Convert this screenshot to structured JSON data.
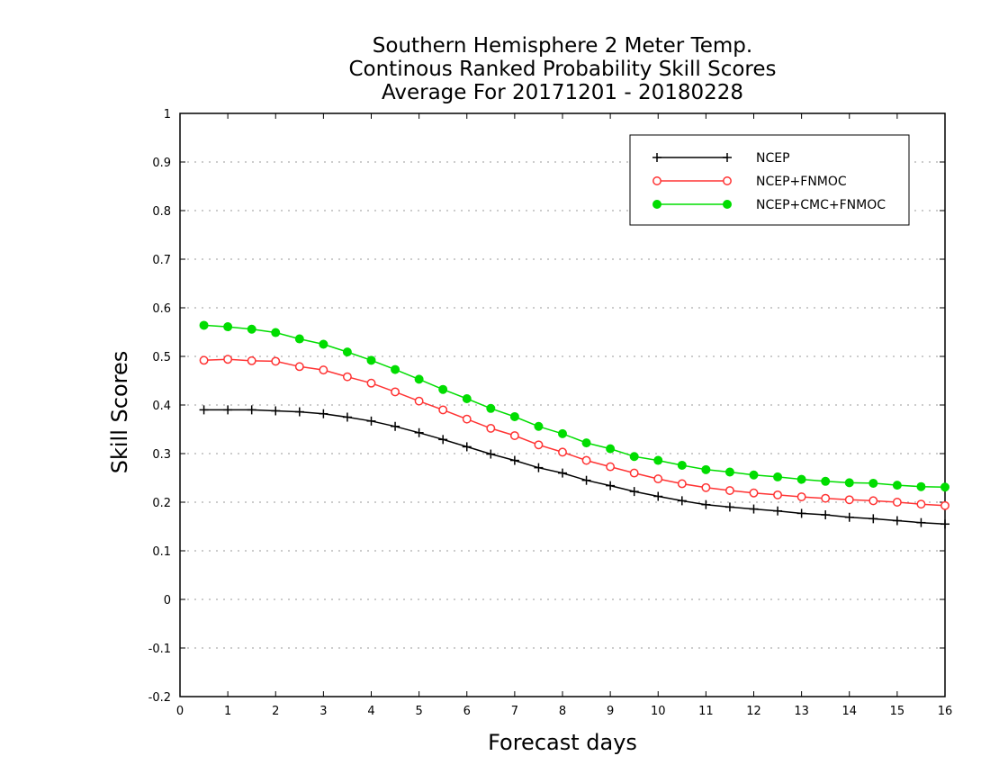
{
  "chart_data": {
    "type": "line",
    "title": "Southern Hemisphere 2 Meter Temp.",
    "subtitle": "Continous Ranked Probability Skill Scores",
    "period": "Average For 20171201 - 20180228",
    "xlabel": "Forecast days",
    "ylabel": "Skill Scores",
    "xlim": [
      0,
      16
    ],
    "ylim": [
      -0.2,
      1
    ],
    "xticks": [
      0,
      1,
      2,
      3,
      4,
      5,
      6,
      7,
      8,
      9,
      10,
      11,
      12,
      13,
      14,
      15,
      16
    ],
    "yticks": [
      "-0.2",
      "-0.1",
      "0",
      "0.1",
      "0.2",
      "0.3",
      "0.4",
      "0.5",
      "0.6",
      "0.7",
      "0.8",
      "0.9",
      "1"
    ],
    "grid": true,
    "legend_position": "top-right",
    "x": [
      0.5,
      1,
      1.5,
      2,
      2.5,
      3,
      3.5,
      4,
      4.5,
      5,
      5.5,
      6,
      6.5,
      7,
      7.5,
      8,
      8.5,
      9,
      9.5,
      10,
      10.5,
      11,
      11.5,
      12,
      12.5,
      13,
      13.5,
      14,
      14.5,
      15,
      15.5,
      16
    ],
    "series": [
      {
        "name": "NCEP",
        "color": "#000000",
        "marker": "plus",
        "values": [
          0.39,
          0.39,
          0.39,
          0.388,
          0.386,
          0.382,
          0.375,
          0.367,
          0.356,
          0.343,
          0.329,
          0.314,
          0.299,
          0.286,
          0.271,
          0.26,
          0.245,
          0.234,
          0.222,
          0.212,
          0.203,
          0.195,
          0.19,
          0.186,
          0.182,
          0.177,
          0.174,
          0.169,
          0.166,
          0.162,
          0.158,
          0.155
        ]
      },
      {
        "name": "NCEP+FNMOC",
        "color": "#ff3333",
        "marker": "open-circle",
        "values": [
          0.492,
          0.494,
          0.491,
          0.49,
          0.479,
          0.472,
          0.458,
          0.445,
          0.427,
          0.408,
          0.39,
          0.371,
          0.352,
          0.337,
          0.318,
          0.303,
          0.286,
          0.273,
          0.26,
          0.248,
          0.238,
          0.23,
          0.224,
          0.219,
          0.215,
          0.211,
          0.208,
          0.205,
          0.203,
          0.2,
          0.196,
          0.193
        ]
      },
      {
        "name": "NCEP+CMC+FNMOC",
        "color": "#00dd00",
        "marker": "filled-circle",
        "values": [
          0.564,
          0.561,
          0.556,
          0.549,
          0.536,
          0.525,
          0.509,
          0.492,
          0.473,
          0.453,
          0.432,
          0.413,
          0.393,
          0.376,
          0.356,
          0.341,
          0.322,
          0.31,
          0.294,
          0.286,
          0.276,
          0.267,
          0.262,
          0.256,
          0.252,
          0.247,
          0.243,
          0.24,
          0.239,
          0.235,
          0.232,
          0.231
        ]
      }
    ]
  }
}
